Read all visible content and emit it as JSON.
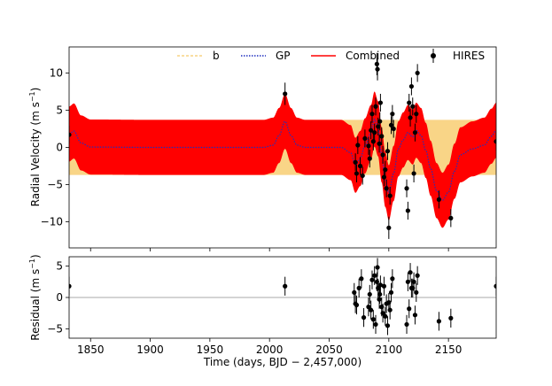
{
  "chart_data": [
    {
      "type": "line",
      "panel": "top",
      "ylabel": "Radial Velocity (m s$^{-1}$)",
      "ylabel_main": "Radial Velocity (m s",
      "ylabel_sup": "−1",
      "ylabel_close": ")",
      "xlim": [
        1832,
        2190
      ],
      "ylim": [
        -13.5,
        13.5
      ],
      "yticks": [
        -10,
        -5,
        0,
        5,
        10
      ],
      "ytick_labels": [
        "−10",
        "−5",
        "0",
        "5",
        "10"
      ],
      "legend_position": "top-right",
      "legend": [
        "b",
        "GP",
        "Combined",
        "HIRES"
      ],
      "colors": {
        "b": "#f5c96a",
        "gp": "#1f2fbf",
        "combined": "#ff0000",
        "hires": "#000000"
      },
      "planet_b": {
        "amplitude": 3.7,
        "period": 3.2
      },
      "gp_curve": {
        "x": [
          1832,
          1836,
          1842,
          1850,
          1900,
          1950,
          1995,
          2003,
          2008,
          2013,
          2018,
          2023,
          2030,
          2060,
          2068,
          2072,
          2076,
          2080,
          2085,
          2088,
          2091,
          2094,
          2097,
          2100,
          2104,
          2108,
          2112,
          2116,
          2120,
          2123,
          2127,
          2131,
          2135,
          2140,
          2145,
          2150,
          2155,
          2160,
          2170,
          2180,
          2186,
          2190
        ],
        "y": [
          1.8,
          2.2,
          0.6,
          0.05,
          0,
          0,
          0,
          0.3,
          1.6,
          3.5,
          1.6,
          0.3,
          0,
          0,
          -0.7,
          -2.4,
          -1.5,
          0.2,
          2.0,
          3.8,
          2.5,
          -1.0,
          -4.3,
          -6.1,
          -3.5,
          -0.2,
          1.0,
          2.0,
          1.4,
          2.3,
          1.6,
          -0.4,
          -2.8,
          -5.8,
          -7.1,
          -6.0,
          -3.2,
          -1.0,
          -0.2,
          0.3,
          1.5,
          2.3
        ]
      },
      "hires": {
        "x": [
          1832,
          2013,
          2072,
          2073,
          2074,
          2076,
          2078,
          2080,
          2083,
          2084,
          2085,
          2086,
          2087,
          2088,
          2089,
          2090,
          2090.5,
          2091,
          2092,
          2092.5,
          2093,
          2094,
          2095,
          2096,
          2097,
          2098,
          2099,
          2100,
          2101,
          2102,
          2103,
          2104,
          2115,
          2116,
          2117,
          2118,
          2119,
          2120,
          2121,
          2122,
          2123,
          2124,
          2142,
          2152,
          2190
        ],
        "y": [
          1.7,
          7.2,
          -2.0,
          -3.5,
          0.3,
          -2.5,
          -3.8,
          1.2,
          0.2,
          -1.5,
          2.3,
          4.5,
          0.8,
          2.0,
          5.5,
          11.2,
          10.5,
          2.8,
          0.5,
          3.5,
          6.0,
          1.5,
          -1.0,
          -4.0,
          -3.0,
          -5.5,
          -0.5,
          -10.8,
          -6.5,
          3.0,
          4.5,
          2.5,
          -5.5,
          -8.5,
          6.0,
          4.0,
          8.2,
          5.5,
          -3.5,
          2.0,
          4.5,
          10.0,
          -7.0,
          -9.5,
          0.8
        ],
        "err": [
          1.2,
          1.5,
          1.2,
          1.2,
          1.2,
          1.2,
          1.2,
          1.2,
          1.2,
          1.2,
          1.2,
          1.2,
          1.2,
          1.2,
          1.2,
          1.5,
          1.5,
          1.2,
          1.2,
          1.2,
          1.2,
          1.2,
          1.2,
          1.2,
          1.2,
          1.2,
          1.2,
          1.5,
          1.2,
          1.2,
          1.2,
          1.2,
          1.2,
          1.2,
          1.2,
          1.2,
          1.2,
          1.2,
          1.2,
          1.2,
          1.2,
          1.2,
          1.2,
          1.2,
          1.2
        ]
      }
    },
    {
      "type": "scatter",
      "panel": "bottom",
      "ylabel_main": "Residual (m s",
      "ylabel_sup": "−1",
      "ylabel_close": ")",
      "xlabel": "Time (days, BJD − 2,457,000)",
      "xlim": [
        1832,
        2190
      ],
      "ylim": [
        -6.5,
        6.5
      ],
      "xticks": [
        1850,
        1900,
        1950,
        2000,
        2050,
        2100,
        2150
      ],
      "xtick_labels": [
        "1850",
        "1900",
        "1950",
        "2000",
        "2050",
        "2100",
        "2150"
      ],
      "yticks": [
        -5,
        0,
        5
      ],
      "ytick_labels": [
        "−5",
        "0",
        "5"
      ],
      "residuals": {
        "x": [
          1832,
          2013,
          2071,
          2072,
          2073,
          2075,
          2077,
          2079,
          2083,
          2084,
          2085,
          2086,
          2087,
          2088,
          2089,
          2090,
          2090.5,
          2091,
          2092,
          2092.5,
          2093,
          2094,
          2095,
          2096,
          2097,
          2098,
          2099,
          2100,
          2101,
          2102,
          2103,
          2115,
          2116,
          2117,
          2118,
          2119,
          2120,
          2121,
          2122,
          2123,
          2124,
          2142,
          2152,
          2190
        ],
        "y": [
          1.8,
          1.8,
          0.8,
          -1.0,
          -1.2,
          1.5,
          3.0,
          -3.2,
          -1.5,
          0.5,
          -2.0,
          2.8,
          -3.5,
          3.5,
          -4.3,
          2.5,
          4.8,
          1.5,
          -0.3,
          0.5,
          2.0,
          -1.5,
          -2.5,
          1.8,
          -3.0,
          -1.0,
          -4.5,
          -0.8,
          -2.0,
          0.8,
          3.0,
          -4.3,
          2.5,
          -1.8,
          4.0,
          1.5,
          1.5,
          2.5,
          -2.8,
          0.8,
          3.5,
          -3.8,
          -3.3,
          1.8
        ],
        "err": 1.5
      }
    }
  ]
}
